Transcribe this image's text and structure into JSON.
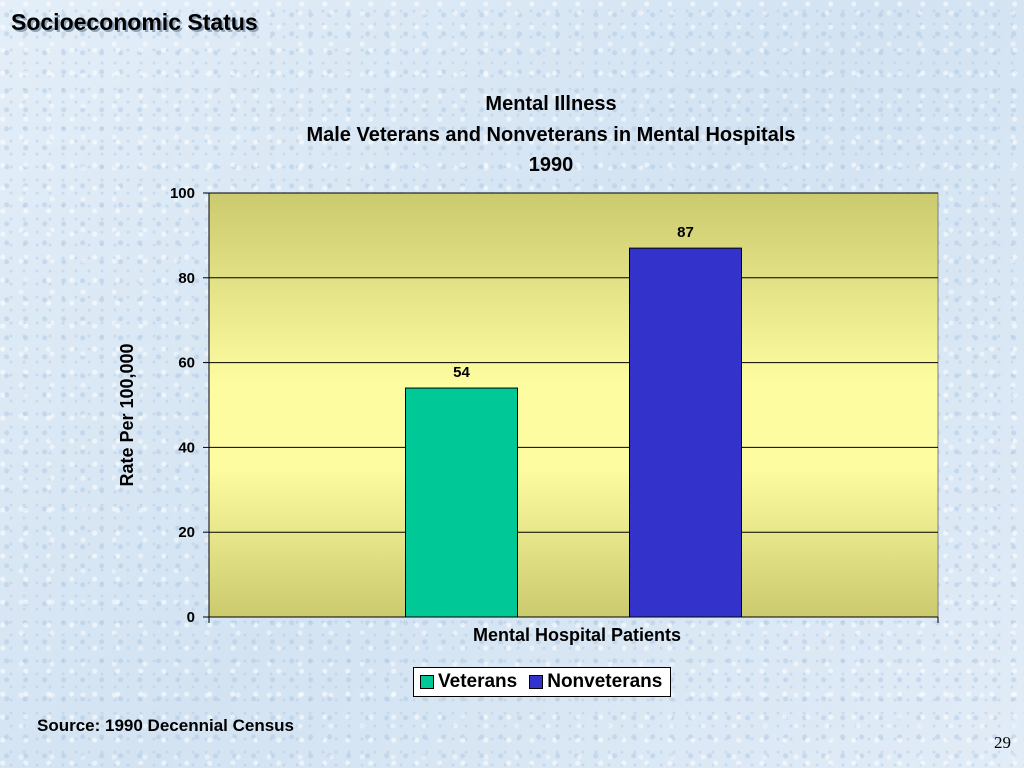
{
  "slide": {
    "title": "Socioeconomic Status",
    "source": "Source:  1990 Decennial Census",
    "page_number": "29"
  },
  "chart_data": {
    "type": "bar",
    "title": "Mental Illness",
    "subtitle": [
      "Male Veterans and Nonveterans in Mental Hospitals",
      "1990"
    ],
    "xlabel": "Mental Hospital Patients",
    "ylabel": "Rate Per 100,000",
    "ylim": [
      0,
      100
    ],
    "yticks": [
      0,
      20,
      40,
      60,
      80,
      100
    ],
    "grid": true,
    "legend_position": "bottom",
    "series": [
      {
        "name": "Veterans",
        "values": [
          54
        ],
        "color": "#00c896"
      },
      {
        "name": "Nonveterans",
        "values": [
          87
        ],
        "color": "#3333cc"
      }
    ],
    "data_labels": [
      "54",
      "87"
    ],
    "plot_background": [
      "#ccca6e",
      "#fdfca0"
    ]
  }
}
